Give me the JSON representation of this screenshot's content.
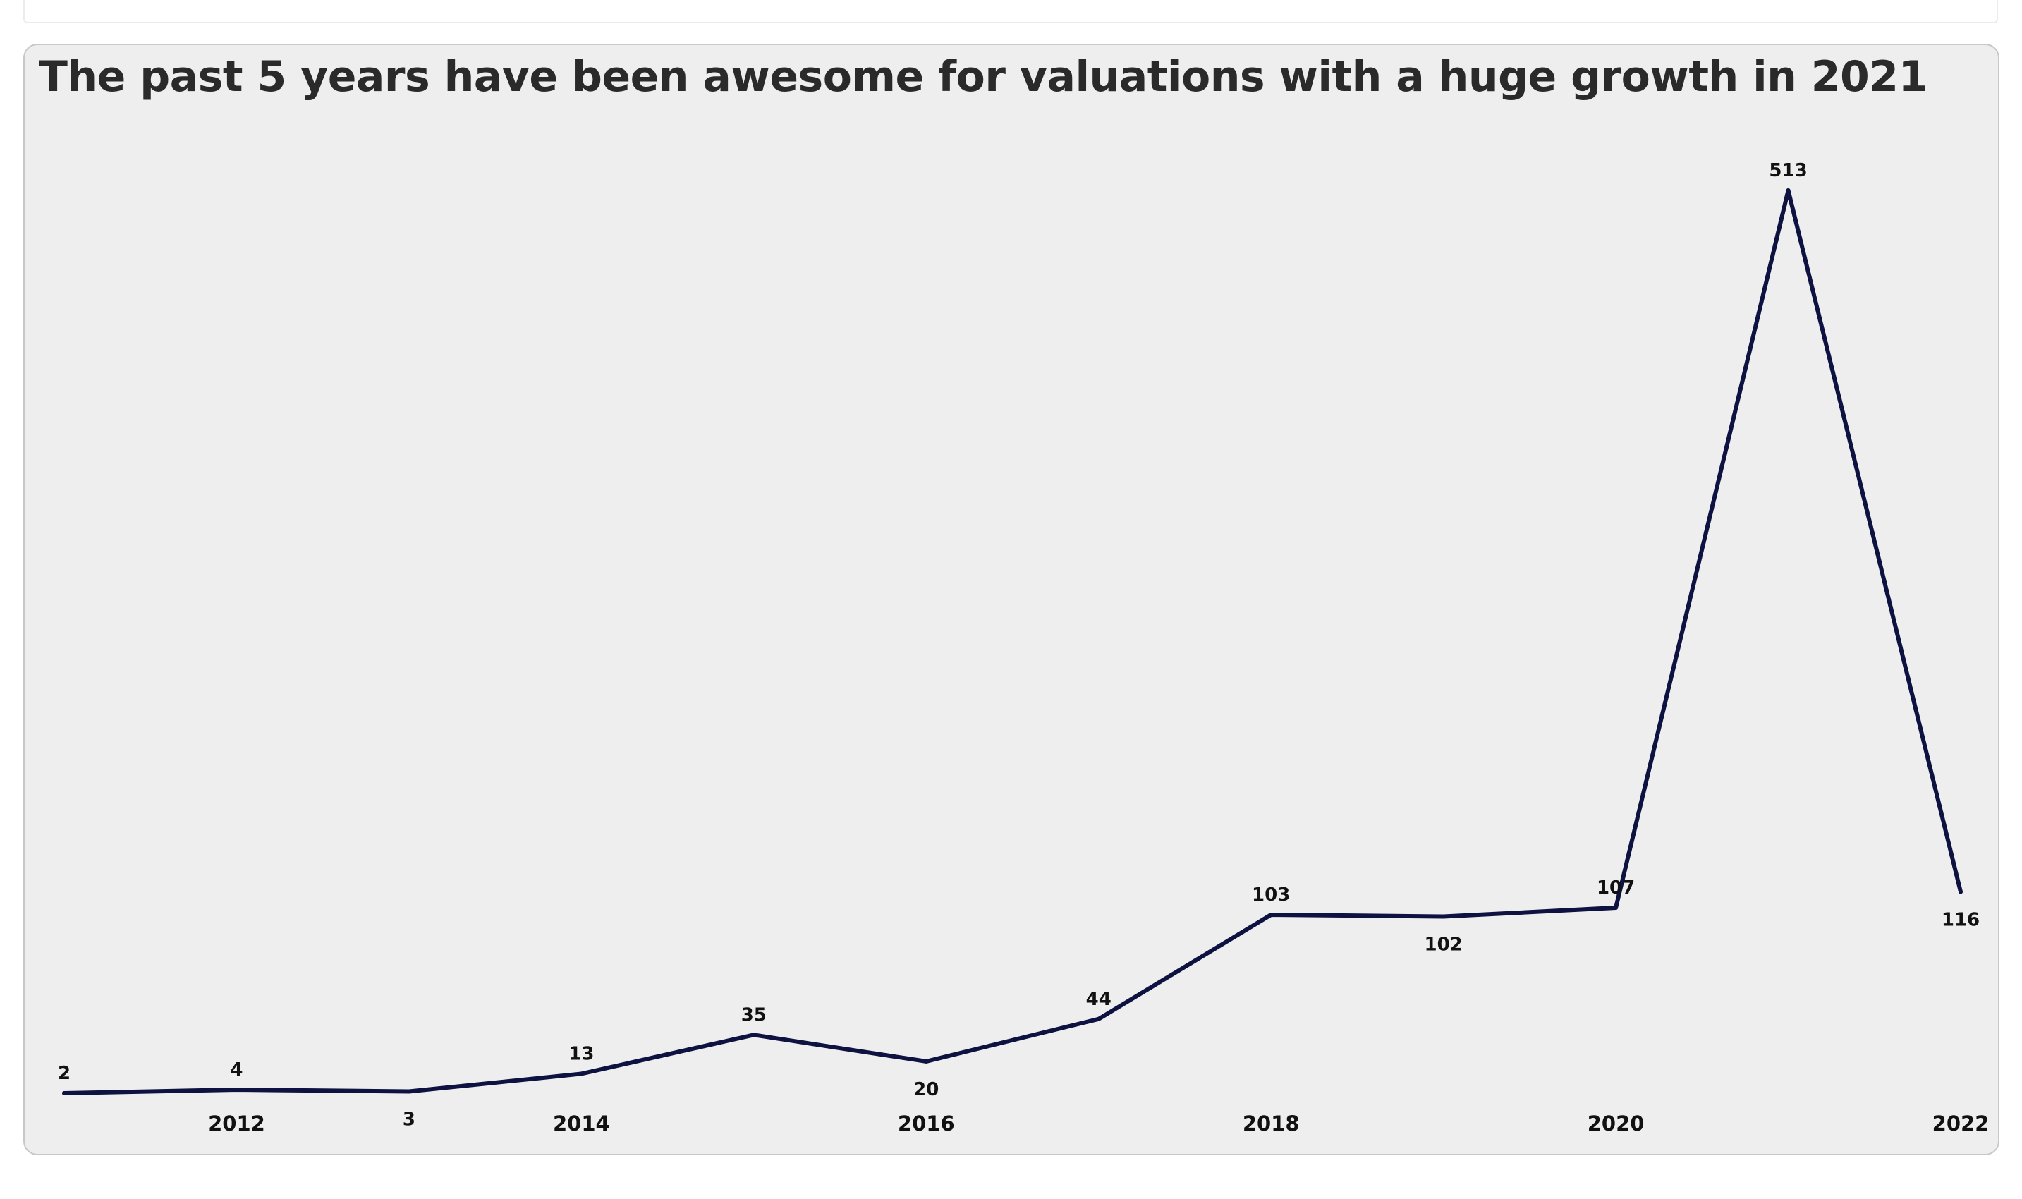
{
  "chart_data": {
    "type": "line",
    "title": "The past 5 years have been awesome for valuations with a huge growth in 2021",
    "xlabel": "",
    "ylabel": "",
    "x": [
      2011,
      2012,
      2013,
      2014,
      2015,
      2016,
      2017,
      2018,
      2019,
      2020,
      2021,
      2022
    ],
    "values": [
      2,
      4,
      3,
      13,
      35,
      20,
      44,
      103,
      102,
      107,
      513,
      116
    ],
    "data_labels": [
      "2",
      "4",
      "3",
      "13",
      "35",
      "20",
      "44",
      "103",
      "102",
      "107",
      "513",
      "116"
    ],
    "x_ticks": [
      2012,
      2014,
      2016,
      2018,
      2020,
      2022
    ],
    "x_tick_labels": [
      "2012",
      "2014",
      "2016",
      "2018",
      "2020",
      "2022"
    ],
    "line_color": "#0d1240",
    "background_color": "#eeeeee",
    "grid": false,
    "legend": "none",
    "y_axis_shown": false
  }
}
